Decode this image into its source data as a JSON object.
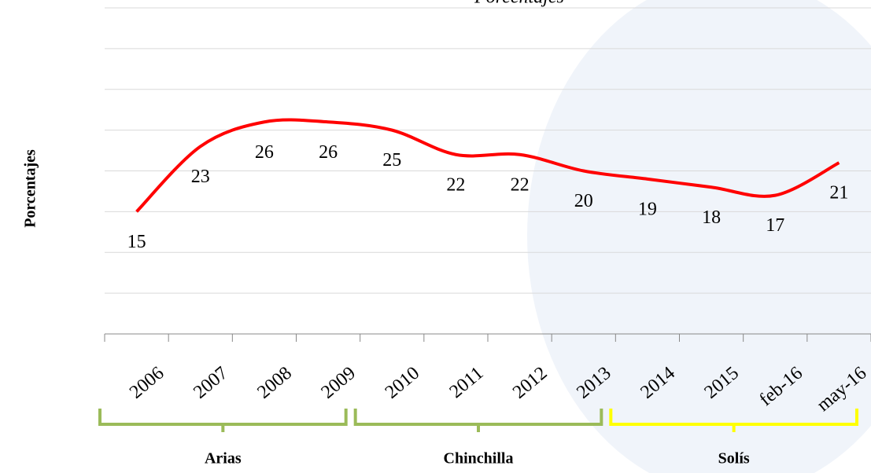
{
  "chart_data": {
    "type": "line",
    "title": "Porcentajes",
    "y_label": "Porcentajes",
    "categories": [
      "2006",
      "2007",
      "2008",
      "2009",
      "2010",
      "2011",
      "2012",
      "2013",
      "2014",
      "2015",
      "feb-16",
      "may-16"
    ],
    "values": [
      15,
      23,
      26,
      26,
      25,
      22,
      22,
      20,
      19,
      18,
      17,
      21
    ],
    "color": "#ff0000",
    "ylim": [
      0,
      40
    ],
    "yticks": [
      0,
      5,
      10,
      15,
      20,
      25,
      30,
      35,
      40
    ],
    "grid": true,
    "groups": [
      {
        "name": "Arias",
        "from": "2006",
        "to": "2009",
        "color": "#9bbb59"
      },
      {
        "name": "Chinchilla",
        "from": "2010",
        "to": "2013",
        "color": "#9bbb59"
      },
      {
        "name": "Solís",
        "from": "2014",
        "to": "may-16",
        "color": "#ffff00"
      }
    ]
  }
}
